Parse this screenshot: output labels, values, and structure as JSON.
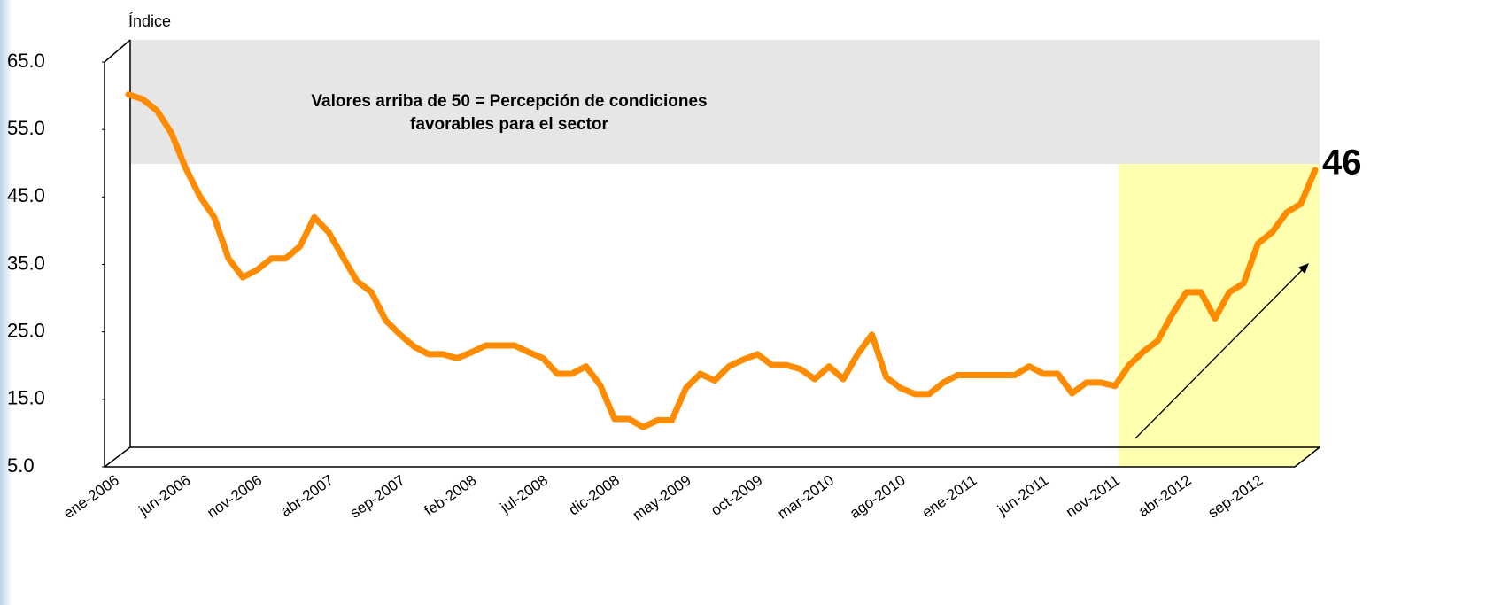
{
  "chart_data": {
    "type": "line",
    "y_axis_title": "Índice",
    "annotation": [
      "Valores arriba de 50 = Percepción de condiciones",
      "favorables para el sector"
    ],
    "categories": [
      "ene-2006",
      null,
      null,
      null,
      null,
      "jun-2006",
      null,
      null,
      null,
      null,
      "nov-2006",
      null,
      null,
      null,
      null,
      "abr-2007",
      null,
      null,
      null,
      null,
      "sep-2007",
      null,
      null,
      null,
      null,
      "feb-2008",
      null,
      null,
      null,
      null,
      "jul-2008",
      null,
      null,
      null,
      null,
      "dic-2008",
      null,
      null,
      null,
      null,
      "may-2009",
      null,
      null,
      null,
      null,
      "oct-2009",
      null,
      null,
      null,
      null,
      "mar-2010",
      null,
      null,
      null,
      null,
      "ago-2010",
      null,
      null,
      null,
      null,
      "ene-2011",
      null,
      null,
      null,
      null,
      "jun-2011",
      null,
      null,
      null,
      null,
      "nov-2011",
      null,
      null,
      null,
      null,
      "abr-2012",
      null,
      null,
      null,
      null,
      "sep-2012",
      null,
      null,
      null
    ],
    "series": [
      {
        "color": "#ff8c00",
        "values": [
          57.3,
          56.6,
          54.9,
          51.6,
          46.4,
          42.2,
          39.1,
          33,
          30.2,
          31.3,
          33,
          33,
          34.8,
          39.1,
          36.9,
          33.2,
          29.6,
          28,
          23.8,
          21.7,
          19.9,
          18.8,
          18.8,
          18.2,
          19.1,
          20.1,
          20.1,
          20.1,
          19.1,
          18.2,
          15.9,
          15.9,
          17,
          14.2,
          9.2,
          9.2,
          8,
          9,
          9,
          13.8,
          15.9,
          14.9,
          17,
          18,
          18.8,
          17.2,
          17.2,
          16.6,
          15.1,
          17,
          15.1,
          18.8,
          21.7,
          15.4,
          13.8,
          12.9,
          12.9,
          14.6,
          15.7,
          15.7,
          15.7,
          15.7,
          15.7,
          17,
          15.9,
          15.9,
          13,
          14.6,
          14.6,
          14.1,
          17.2,
          19.2,
          20.8,
          24.7,
          28,
          28,
          24.1,
          28,
          29.3,
          35.2,
          36.9,
          39.8,
          41.1,
          46.1
        ],
        "value_labels": {
          "83": "46"
        }
      }
    ],
    "ylim": [
      5,
      65
    ],
    "yticks": [
      {
        "value": 5,
        "label": "5.0"
      },
      {
        "value": 15,
        "label": "15.0"
      },
      {
        "value": 25,
        "label": "25.0"
      },
      {
        "value": 35,
        "label": "35.0"
      },
      {
        "value": 45,
        "label": "45.0"
      },
      {
        "value": 55,
        "label": "55.0"
      },
      {
        "value": 65,
        "label": "65.0"
      }
    ],
    "grid": false,
    "shaded_band": {
      "ylim": [
        47,
        65
      ],
      "color": "#e6e6e6"
    },
    "highlight": {
      "x_start": "nov-2011",
      "ylim": [
        5,
        47
      ],
      "color": "#ffffb0"
    }
  }
}
